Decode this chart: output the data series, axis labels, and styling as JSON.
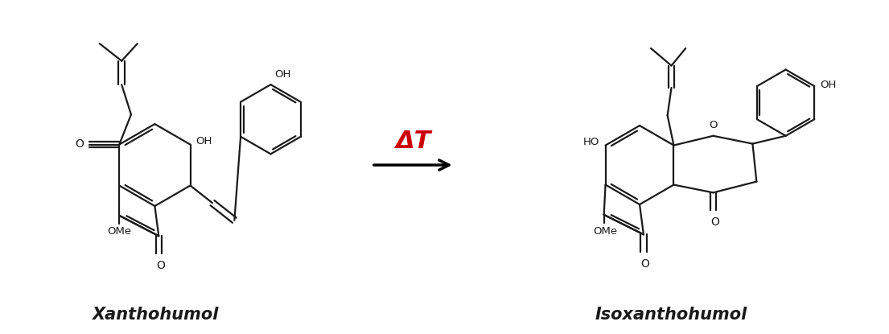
{
  "title_left": "Xanthohumol",
  "title_right": "Isoxanthohumol",
  "arrow_label": "ΔT",
  "arrow_color": "#cc0000",
  "line_color": "#1a1a1a",
  "background_color": "#ffffff",
  "label_fontsize": 15,
  "arrow_fontsize": 22,
  "fig_width": 11.05,
  "fig_height": 4.15,
  "dpi": 100
}
